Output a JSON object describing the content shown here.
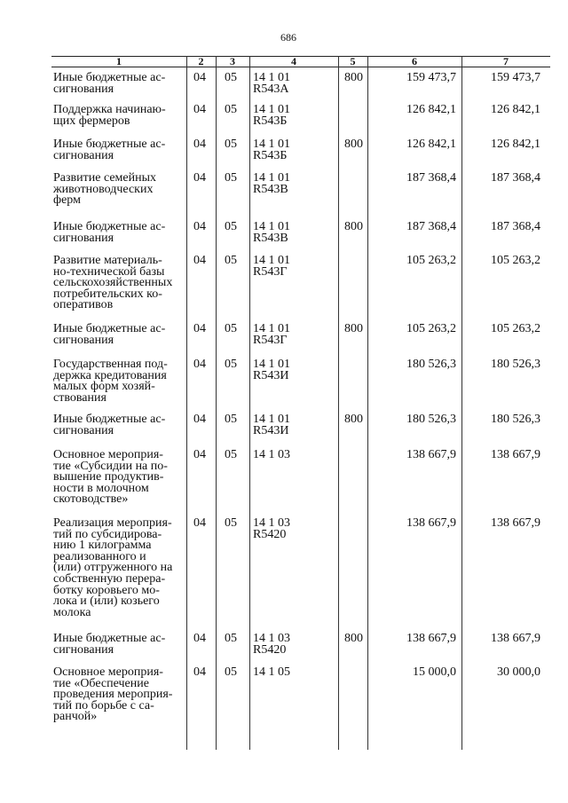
{
  "page_number": "686",
  "table": {
    "headers": [
      "1",
      "2",
      "3",
      "4",
      "5",
      "6",
      "7"
    ],
    "rows": [
      {
        "name": "Иные бюджетные ас-\nсигнования",
        "c2": "04",
        "c3": "05",
        "c4": "14 1 01\nR543А",
        "c5": "800",
        "c6": "159 473,7",
        "c7": "159 473,7"
      },
      {
        "name": "Поддержка начинаю-\nщих фермеров",
        "c2": "04",
        "c3": "05",
        "c4": "14 1 01\nR543Б",
        "c5": "",
        "c6": "126 842,1",
        "c7": "126 842,1"
      },
      {
        "name": "Иные бюджетные ас-\nсигнования",
        "c2": "04",
        "c3": "05",
        "c4": "14 1 01\nR543Б",
        "c5": "800",
        "c6": "126 842,1",
        "c7": "126 842,1"
      },
      {
        "name": "Развитие семейных\nживотноводческих\nферм",
        "c2": "04",
        "c3": "05",
        "c4": "14 1 01\nR543В",
        "c5": "",
        "c6": "187 368,4",
        "c7": "187 368,4"
      },
      {
        "name": "Иные бюджетные ас-\nсигнования",
        "c2": "04",
        "c3": "05",
        "c4": "14 1 01\nR543В",
        "c5": "800",
        "c6": "187 368,4",
        "c7": "187 368,4"
      },
      {
        "name": "Развитие материаль-\nно-технической базы\nсельскохозяйственных\nпотребительских ко-\nоперативов",
        "c2": "04",
        "c3": "05",
        "c4": "14 1 01\nR543Г",
        "c5": "",
        "c6": "105 263,2",
        "c7": "105 263,2"
      },
      {
        "name": "Иные бюджетные ас-\nсигнования",
        "c2": "04",
        "c3": "05",
        "c4": "14 1 01\nR543Г",
        "c5": "800",
        "c6": "105 263,2",
        "c7": "105 263,2"
      },
      {
        "name": "Государственная под-\nдержка кредитования\nмалых форм хозяй-\nствования",
        "c2": "04",
        "c3": "05",
        "c4": "14 1 01\nR543И",
        "c5": "",
        "c6": "180 526,3",
        "c7": "180 526,3"
      },
      {
        "name": "Иные бюджетные ас-\nсигнования",
        "c2": "04",
        "c3": "05",
        "c4": "14 1 01\nR543И",
        "c5": "800",
        "c6": "180 526,3",
        "c7": "180 526,3"
      },
      {
        "name": "Основное мероприя-\nтие «Субсидии на по-\nвышение продуктив-\nности в  молочном\nскотоводстве»",
        "c2": "04",
        "c3": "05",
        "c4": "14 1 03",
        "c5": "",
        "c6": "138 667,9",
        "c7": "138 667,9"
      },
      {
        "name": "Реализация мероприя-\nтий по субсидирова-\nнию 1 килограмма\nреализованного и\n(или) отгруженного на\nсобственную перера-\nботку коровьего мо-\nлока и (или) козьего\nмолока",
        "c2": "04",
        "c3": "05",
        "c4": "14 1 03\nR5420",
        "c5": "",
        "c6": "138 667,9",
        "c7": "138 667,9"
      },
      {
        "name": "Иные бюджетные ас-\nсигнования",
        "c2": "04",
        "c3": "05",
        "c4": "14 1 03\nR5420",
        "c5": "800",
        "c6": "138 667,9",
        "c7": "138 667,9"
      },
      {
        "name": "Основное мероприя-\nтие «Обеспечение\nпроведения мероприя-\nтий по борьбе с са-\nранчой»",
        "c2": "04",
        "c3": "05",
        "c4": "14 1 05",
        "c5": "",
        "c6": "15 000,0",
        "c7": "30 000,0"
      }
    ]
  }
}
